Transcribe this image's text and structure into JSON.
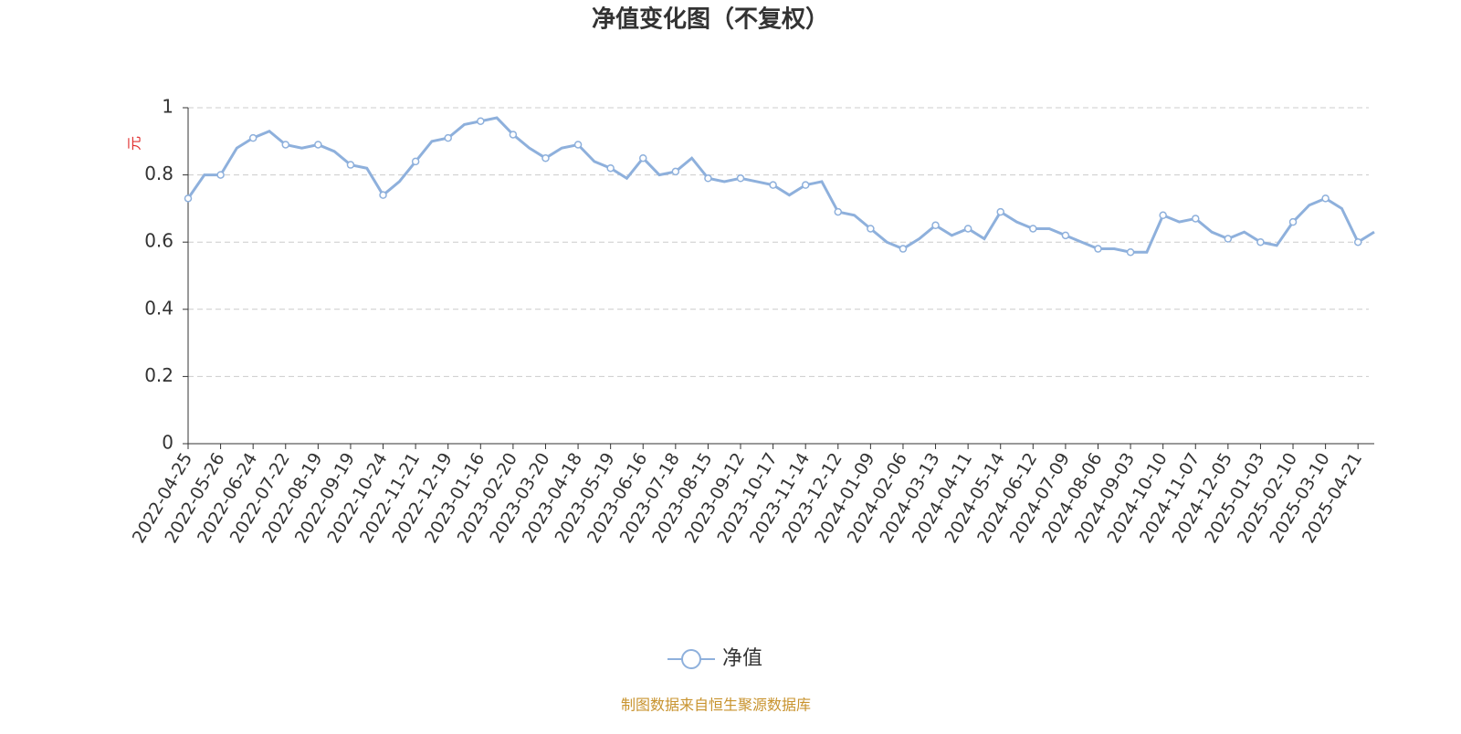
{
  "chart_data": {
    "type": "line",
    "title": "净值变化图（不复权）",
    "y_label": "元",
    "source": "制图数据来自恒生聚源数据库",
    "categories": [
      "2022-04-25",
      null,
      "2022-05-26",
      null,
      "2022-06-24",
      null,
      "2022-07-22",
      null,
      "2022-08-19",
      null,
      "2022-09-19",
      null,
      "2022-10-24",
      null,
      "2022-11-21",
      null,
      "2022-12-19",
      null,
      "2023-01-16",
      null,
      "2023-02-20",
      null,
      "2023-03-20",
      null,
      "2023-04-18",
      null,
      "2023-05-19",
      null,
      "2023-06-16",
      null,
      "2023-07-18",
      null,
      "2023-08-15",
      null,
      "2023-09-12",
      null,
      "2023-10-17",
      null,
      "2023-11-14",
      null,
      "2023-12-12",
      null,
      "2024-01-09",
      null,
      "2024-02-06",
      null,
      "2024-03-13",
      null,
      "2024-04-11",
      null,
      "2024-05-14",
      null,
      "2024-06-12",
      null,
      "2024-07-09",
      null,
      "2024-08-06",
      null,
      "2024-09-03",
      null,
      "2024-10-10",
      null,
      "2024-11-07",
      null,
      "2024-12-05",
      null,
      "2025-01-03",
      null,
      "2025-02-10",
      null,
      "2025-03-10",
      null,
      "2025-04-21",
      null
    ],
    "series": [
      {
        "name": "净值",
        "color": "#8eb0dc",
        "values": [
          0.73,
          0.8,
          0.8,
          0.88,
          0.91,
          0.93,
          0.89,
          0.88,
          0.89,
          0.87,
          0.83,
          0.82,
          0.74,
          0.78,
          0.84,
          0.9,
          0.91,
          0.95,
          0.96,
          0.97,
          0.92,
          0.88,
          0.85,
          0.88,
          0.89,
          0.84,
          0.82,
          0.79,
          0.85,
          0.8,
          0.81,
          0.85,
          0.79,
          0.78,
          0.79,
          0.78,
          0.77,
          0.74,
          0.77,
          0.78,
          0.69,
          0.68,
          0.64,
          0.6,
          0.58,
          0.61,
          0.65,
          0.62,
          0.64,
          0.61,
          0.69,
          0.66,
          0.64,
          0.64,
          0.62,
          0.6,
          0.58,
          0.58,
          0.57,
          0.57,
          0.68,
          0.66,
          0.67,
          0.63,
          0.61,
          0.63,
          0.6,
          0.59,
          0.66,
          0.71,
          0.73,
          0.7,
          0.6,
          0.63
        ]
      }
    ],
    "ylim": [
      0,
      1
    ],
    "yticks": [
      0,
      0.2,
      0.4,
      0.6,
      0.8,
      1
    ],
    "grid": true,
    "legend": "bottom"
  }
}
